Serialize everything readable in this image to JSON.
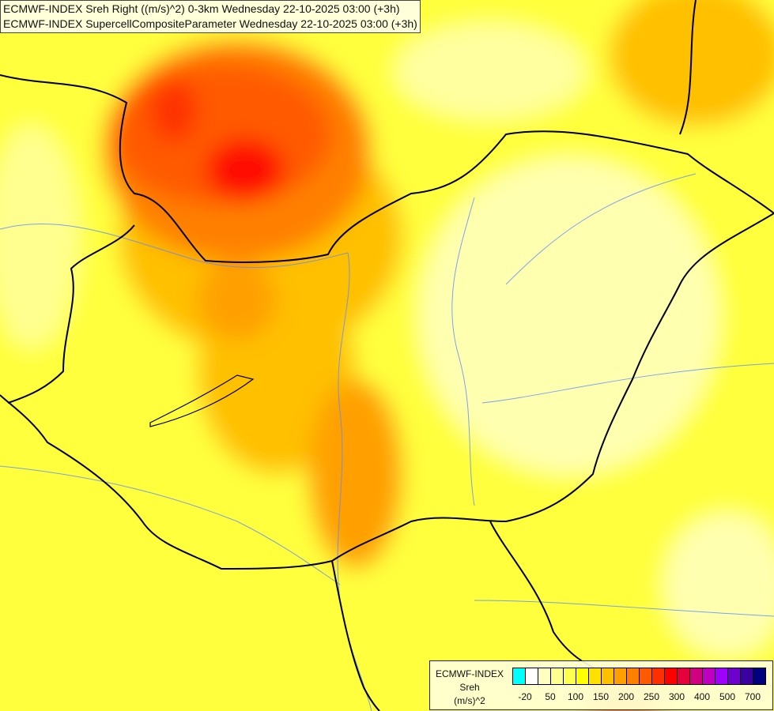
{
  "titles": [
    "ECMWF-INDEX Sreh Right ((m/s)^2) 0-3km Wednesday 22-10-2025 03:00 (+3h)",
    "ECMWF-INDEX SupercellCompositeParameter Wednesday 22-10-2025 03:00 (+3h)"
  ],
  "legend": {
    "line1": "ECMWF-INDEX",
    "line2": "Sreh",
    "line3": "(m/s)^2",
    "colors": [
      "#00ffff",
      "#ffffff",
      "#ffffc0",
      "#ffff90",
      "#ffff50",
      "#ffff00",
      "#ffe000",
      "#ffc000",
      "#ffa000",
      "#ff8000",
      "#ff5a00",
      "#ff3000",
      "#ff0000",
      "#e8003c",
      "#d00080",
      "#c000c0",
      "#a000ff",
      "#6e00d0",
      "#3c00a0",
      "#000080"
    ],
    "tick_labels": [
      "-20",
      "50",
      "100",
      "150",
      "200",
      "250",
      "300",
      "400",
      "500",
      "700"
    ]
  }
}
